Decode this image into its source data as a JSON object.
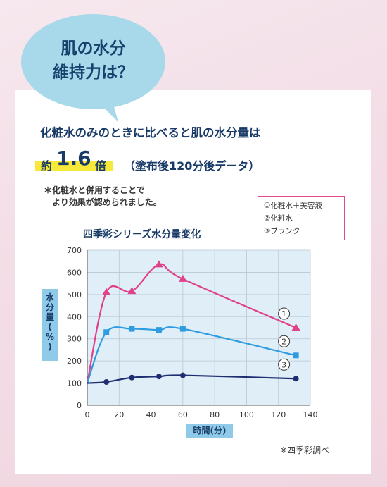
{
  "bubble": {
    "line1": "肌の水分",
    "line2": "維持力は？"
  },
  "headline": "化粧水のみのときに比べると肌の水分量は",
  "emphasis": {
    "prefix": "約",
    "number": "1.6",
    "suffix": "倍",
    "paren": "（塗布後120分後データ）"
  },
  "note": {
    "line1": "＊化粧水と併用することで",
    "line2": "　より効果が認められました。"
  },
  "legend": [
    "①化粧水＋美容液",
    "②化粧水",
    "③ブランク"
  ],
  "source": "※四季彩調べ",
  "colors": {
    "series1": "#e0418a",
    "series2": "#2f9be0",
    "series3": "#1f2e70",
    "plot_bg": "#dfeef7",
    "axis_label_bg": "#8fcbe8"
  },
  "chart_data": {
    "type": "line",
    "title": "四季彩シリーズ水分量変化",
    "xlabel": "時間(分)",
    "ylabel": "水分量(%)",
    "xlim": [
      0,
      140
    ],
    "ylim": [
      0,
      700
    ],
    "xticks": [
      0,
      20,
      40,
      60,
      80,
      100,
      120,
      140
    ],
    "yticks": [
      0,
      100,
      200,
      300,
      400,
      500,
      600,
      700
    ],
    "grid": true,
    "series": [
      {
        "name": "①",
        "marker": "triangle",
        "points": [
          [
            0,
            100
          ],
          [
            12,
            510
          ],
          [
            28,
            515
          ],
          [
            45,
            635
          ],
          [
            60,
            570
          ],
          [
            131,
            350
          ]
        ]
      },
      {
        "name": "②",
        "marker": "square",
        "points": [
          [
            0,
            100
          ],
          [
            12,
            330
          ],
          [
            28,
            345
          ],
          [
            45,
            340
          ],
          [
            60,
            345
          ],
          [
            131,
            225
          ]
        ]
      },
      {
        "name": "③",
        "marker": "circle",
        "points": [
          [
            0,
            100
          ],
          [
            12,
            105
          ],
          [
            28,
            125
          ],
          [
            45,
            130
          ],
          [
            60,
            135
          ],
          [
            131,
            120
          ]
        ]
      }
    ]
  }
}
